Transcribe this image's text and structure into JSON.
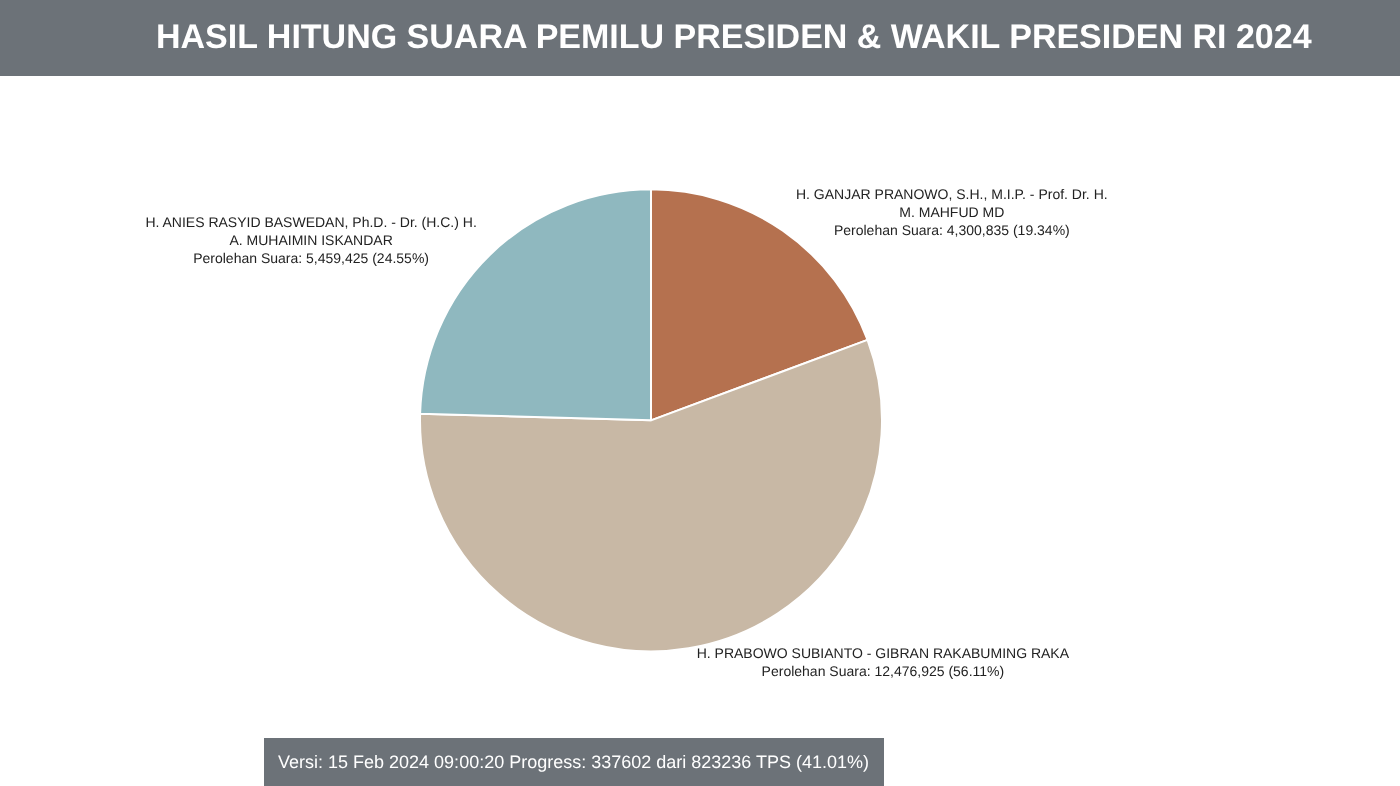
{
  "chart_data": {
    "type": "pie",
    "title": "HASIL HITUNG SUARA PEMILU PRESIDEN & WAKIL PRESIDEN RI 2024",
    "categories": [
      "H. GANJAR PRANOWO, S.H., M.I.P. - Prof. Dr. H. M. MAHFUD MD",
      "H. PRABOWO SUBIANTO - GIBRAN RAKABUMING RAKA",
      "H. ANIES RASYID BASWEDAN, Ph.D. - Dr. (H.C.) H. A. MUHAIMIN ISKANDAR"
    ],
    "values": [
      4300835,
      12476925,
      5459425
    ],
    "colors": [
      "#b5714f",
      "#c8b8a5",
      "#8fb8bf"
    ],
    "value_labels": [
      "Perolehan Suara: 4,300,835 (19.34%)",
      "Perolehan Suara: 12,476,925 (56.11%)",
      "Perolehan Suara: 5,459,425 (24.55%)"
    ],
    "annotations": [
      "Versi: 15 Feb 2024 09:00:20 Progress: 337602 dari 823236 TPS (41.01%)"
    ],
    "legend": false
  }
}
